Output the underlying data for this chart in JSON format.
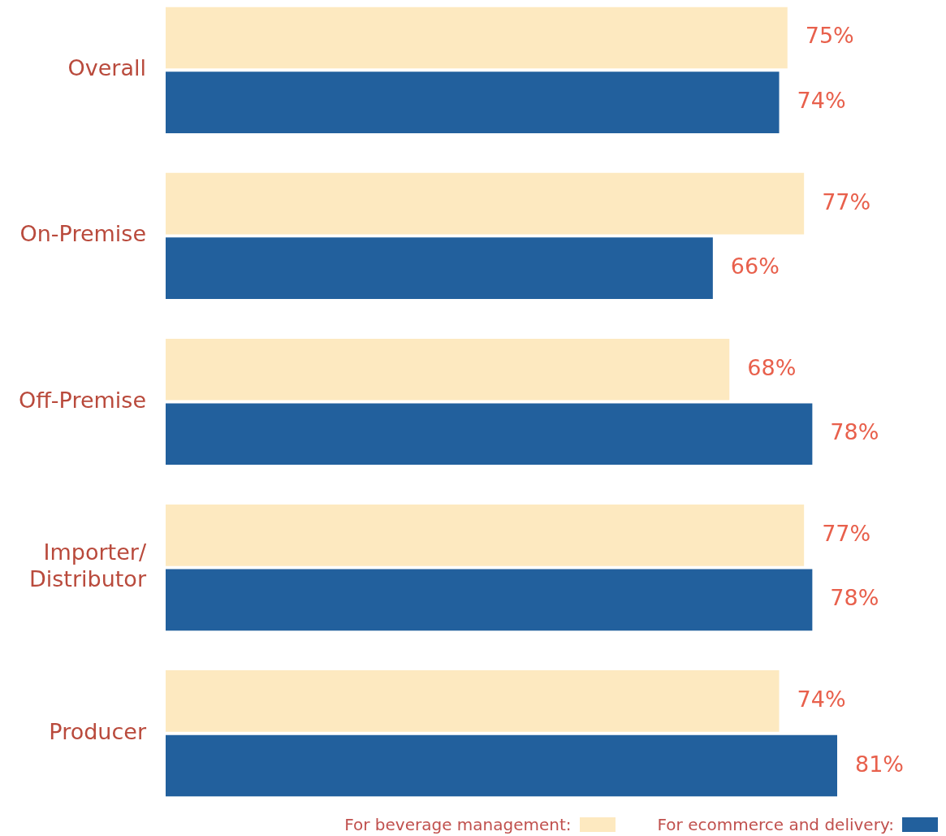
{
  "chart_data": {
    "type": "bar",
    "orientation": "horizontal",
    "categories": [
      "Overall",
      "On-Premise",
      "Off-Premise",
      "Importer/\nDistributor",
      "Producer"
    ],
    "series": [
      {
        "name": "For beverage management:",
        "color": "#fde9c0",
        "values": [
          75,
          77,
          68,
          77,
          74
        ],
        "value_labels": [
          "75%",
          "77%",
          "68%",
          "77%",
          "74%"
        ]
      },
      {
        "name": "For ecommerce and delivery:",
        "color": "#22609d",
        "values": [
          74,
          66,
          78,
          78,
          81
        ],
        "value_labels": [
          "74%",
          "66%",
          "78%",
          "78%",
          "81%"
        ]
      }
    ],
    "tick_labels": "y",
    "legend": "bottom right"
  }
}
